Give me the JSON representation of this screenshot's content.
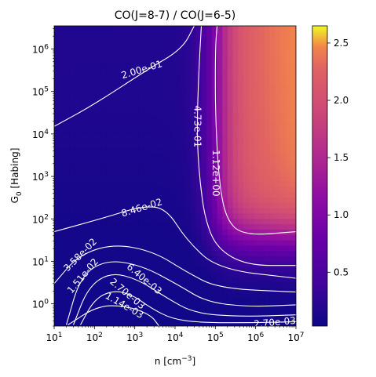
{
  "chart_data": {
    "type": "heatmap",
    "title": "CO(J=8-7) / CO(J=6-5)",
    "xlabel_base": "n [cm",
    "xlabel_sup": "−3",
    "xlabel_end": "]",
    "ylabel_main": "G",
    "ylabel_sub": "0",
    "ylabel_end": " [Habing]",
    "x_scale": "log",
    "y_scale": "log",
    "xlim": [
      10,
      10000000
    ],
    "ylim": [
      0.3,
      3500000
    ],
    "x_ticks": [
      {
        "value": 10,
        "base": "10",
        "exp": "1"
      },
      {
        "value": 100,
        "base": "10",
        "exp": "2"
      },
      {
        "value": 1000,
        "base": "10",
        "exp": "3"
      },
      {
        "value": 10000,
        "base": "10",
        "exp": "4"
      },
      {
        "value": 100000,
        "base": "10",
        "exp": "5"
      },
      {
        "value": 1000000,
        "base": "10",
        "exp": "6"
      },
      {
        "value": 10000000,
        "base": "10",
        "exp": "7"
      }
    ],
    "y_ticks": [
      {
        "value": 1,
        "base": "10",
        "exp": "0"
      },
      {
        "value": 10,
        "base": "10",
        "exp": "1"
      },
      {
        "value": 100,
        "base": "10",
        "exp": "2"
      },
      {
        "value": 1000,
        "base": "10",
        "exp": "3"
      },
      {
        "value": 10000,
        "base": "10",
        "exp": "4"
      },
      {
        "value": 100000,
        "base": "10",
        "exp": "5"
      },
      {
        "value": 1000000,
        "base": "10",
        "exp": "6"
      }
    ],
    "colormap": "plasma",
    "colorbar": {
      "range": [
        0.03,
        2.65
      ],
      "ticks": [
        "0.5",
        "1.0",
        "1.5",
        "2.0",
        "2.5"
      ]
    },
    "contours": [
      {
        "level": "1.14e-03",
        "points": [
          [
            22,
            0.32
          ],
          [
            120,
            0.9
          ],
          [
            600,
            0.9
          ],
          [
            2500,
            0.55
          ],
          [
            4000,
            0.3
          ]
        ]
      },
      {
        "level": "2.70e-03",
        "points": [
          [
            45,
            0.32
          ],
          [
            100,
            1.3
          ],
          [
            300,
            2.1
          ],
          [
            900,
            1.6
          ],
          [
            2500,
            0.8
          ],
          [
            8000,
            0.45
          ],
          [
            40000,
            0.36
          ],
          [
            1000000,
            0.36
          ],
          [
            10000000,
            0.38
          ]
        ]
      },
      {
        "level": "6.40e-03",
        "points": [
          [
            30,
            0.32
          ],
          [
            70,
            2.5
          ],
          [
            250,
            5.5
          ],
          [
            1200,
            3.8
          ],
          [
            6000,
            1.4
          ],
          [
            30000,
            0.6
          ],
          [
            400000,
            0.5
          ],
          [
            10000000,
            0.55
          ]
        ]
      },
      {
        "level": "1.51e-02",
        "points": [
          [
            20,
            0.32
          ],
          [
            45,
            4.5
          ],
          [
            200,
            11
          ],
          [
            1500,
            8
          ],
          [
            12000,
            2.8
          ],
          [
            60000,
            1.1
          ],
          [
            700000,
            0.85
          ],
          [
            10000000,
            0.95
          ]
        ]
      },
      {
        "level": "3.58e-02",
        "points": [
          [
            10,
            3
          ],
          [
            40,
            14
          ],
          [
            300,
            26
          ],
          [
            3000,
            17
          ],
          [
            20000,
            5.5
          ],
          [
            120000,
            2.3
          ],
          [
            10000000,
            1.9
          ]
        ]
      },
      {
        "level": "8.46e-02",
        "points": [
          [
            10,
            50
          ],
          [
            200,
            110
          ],
          [
            1500,
            200
          ],
          [
            6000,
            180
          ],
          [
            20000,
            30
          ],
          [
            120000,
            6.5
          ],
          [
            10000000,
            4
          ]
        ]
      },
      {
        "level": "2.00e-01",
        "points": [
          [
            10,
            15000
          ],
          [
            100,
            50000
          ],
          [
            2000,
            320000
          ],
          [
            15000,
            1000000
          ],
          [
            30000,
            3500000
          ]
        ]
      },
      {
        "level": "4.73e-01",
        "points": [
          [
            45000,
            3500000
          ],
          [
            38000,
            200000
          ],
          [
            35000,
            10000
          ],
          [
            40000,
            1000
          ],
          [
            55000,
            100
          ],
          [
            110000,
            20
          ],
          [
            600000,
            8
          ],
          [
            10000000,
            8
          ]
        ]
      },
      {
        "level": "1.12e+00",
        "points": [
          [
            110000,
            3500000
          ],
          [
            100000,
            1000000
          ],
          [
            100000,
            30000
          ],
          [
            120000,
            1000
          ],
          [
            180000,
            100
          ],
          [
            500000,
            40
          ],
          [
            10000000,
            50
          ]
        ]
      }
    ],
    "contour_labels": [
      {
        "text": "2.00e-01",
        "x": 1500,
        "y": 320000,
        "angle": -17
      },
      {
        "text": "4.73e-01",
        "x": 35000,
        "y": 15000,
        "angle": 90
      },
      {
        "text": "1.12e+00",
        "x": 100000,
        "y": 1200,
        "angle": 90
      },
      {
        "text": "8.46e-02",
        "x": 1500,
        "y": 180,
        "angle": -17
      },
      {
        "text": "3.58e-02",
        "x": 45,
        "y": 14,
        "angle": -45
      },
      {
        "text": "1.51e-02",
        "x": 52,
        "y": 4.5,
        "angle": -50
      },
      {
        "text": "6.40e-03",
        "x": 1700,
        "y": 3.8,
        "angle": 40
      },
      {
        "text": "2.70e-03",
        "x": 650,
        "y": 1.7,
        "angle": 40
      },
      {
        "text": "1.14e-03",
        "x": 550,
        "y": 0.9,
        "angle": 30
      },
      {
        "text": "2.70e-03",
        "x": 3000000,
        "y": 0.36,
        "angle": -5
      }
    ]
  }
}
